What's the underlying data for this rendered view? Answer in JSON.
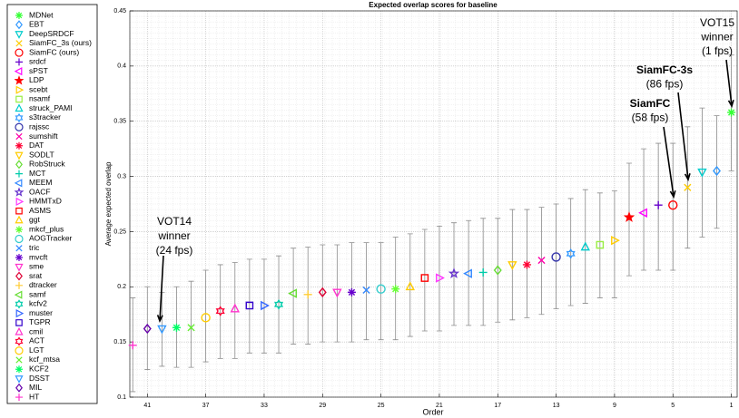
{
  "chart_data": {
    "type": "errorbar-scatter",
    "title": "Expected overlap scores for baseline",
    "xlabel": "Order",
    "ylabel": "Average expected overlap",
    "xlim": [
      0.6,
      42.2
    ],
    "xreverse": true,
    "xticks": [
      1,
      5,
      9,
      13,
      17,
      21,
      25,
      29,
      33,
      37,
      41
    ],
    "ylim": [
      0.1,
      0.45
    ],
    "yticks": [
      0.1,
      0.15,
      0.2,
      0.25,
      0.3,
      0.35,
      0.4,
      0.45
    ],
    "grid": true,
    "errorbar_color": "#8c8c8c",
    "series": [
      {
        "name": "MDNet",
        "color": "#33ff33",
        "marker": "asterisk",
        "x": [
          1
        ],
        "values": [
          0.358
        ],
        "lower": [
          0.305
        ],
        "upper": [
          0.41
        ]
      },
      {
        "name": "EBT",
        "color": "#3399ff",
        "marker": "diamond",
        "x": [
          2
        ],
        "values": [
          0.305
        ],
        "lower": [
          0.253
        ],
        "upper": [
          0.355
        ]
      },
      {
        "name": "DeepSRDCF",
        "color": "#00cccc",
        "marker": "tri-down",
        "x": [
          3
        ],
        "values": [
          0.304
        ],
        "lower": [
          0.245
        ],
        "upper": [
          0.362
        ]
      },
      {
        "name": "SiamFC_3s (ours)",
        "color": "#ffcc00",
        "marker": "x",
        "x": [
          4
        ],
        "values": [
          0.29
        ],
        "lower": [
          0.235
        ],
        "upper": [
          0.345
        ]
      },
      {
        "name": "SiamFC (ours)",
        "color": "#ff0000",
        "marker": "circle",
        "x": [
          5
        ],
        "values": [
          0.274
        ],
        "lower": [
          0.215
        ],
        "upper": [
          0.33
        ]
      },
      {
        "name": "srdcf",
        "color": "#6600cc",
        "marker": "plus",
        "x": [
          6
        ],
        "values": [
          0.274
        ],
        "lower": [
          0.215
        ],
        "upper": [
          0.33
        ]
      },
      {
        "name": "sPST",
        "color": "#ff00ff",
        "marker": "tri-left",
        "x": [
          7
        ],
        "values": [
          0.267
        ],
        "lower": [
          0.215
        ],
        "upper": [
          0.325
        ]
      },
      {
        "name": "LDP",
        "color": "#ff0000",
        "marker": "star",
        "filled": true,
        "x": [
          8
        ],
        "values": [
          0.263
        ],
        "lower": [
          0.21
        ],
        "upper": [
          0.312
        ]
      },
      {
        "name": "scebt",
        "color": "#ffcc00",
        "marker": "tri-right",
        "x": [
          9
        ],
        "values": [
          0.242
        ],
        "lower": [
          0.19
        ],
        "upper": [
          0.287
        ]
      },
      {
        "name": "nsamf",
        "color": "#99ee44",
        "marker": "square",
        "x": [
          10
        ],
        "values": [
          0.238
        ],
        "lower": [
          0.19
        ],
        "upper": [
          0.285
        ]
      },
      {
        "name": "struck_PAMI",
        "color": "#00cccc",
        "marker": "tri-up",
        "x": [
          11
        ],
        "values": [
          0.236
        ],
        "lower": [
          0.185
        ],
        "upper": [
          0.288
        ]
      },
      {
        "name": "s3tracker",
        "color": "#3399ff",
        "marker": "hexagram",
        "x": [
          12
        ],
        "values": [
          0.23
        ],
        "lower": [
          0.183
        ],
        "upper": [
          0.28
        ]
      },
      {
        "name": "rajssc",
        "color": "#3333aa",
        "marker": "circle",
        "x": [
          13
        ],
        "values": [
          0.227
        ],
        "lower": [
          0.18
        ],
        "upper": [
          0.275
        ]
      },
      {
        "name": "sumshift",
        "color": "#ff00aa",
        "marker": "x",
        "x": [
          14
        ],
        "values": [
          0.224
        ],
        "lower": [
          0.175
        ],
        "upper": [
          0.272
        ]
      },
      {
        "name": "DAT",
        "color": "#ff0033",
        "marker": "asterisk",
        "x": [
          15
        ],
        "values": [
          0.22
        ],
        "lower": [
          0.172
        ],
        "upper": [
          0.27
        ]
      },
      {
        "name": "SODLT",
        "color": "#ffcc00",
        "marker": "tri-down",
        "x": [
          16
        ],
        "values": [
          0.22
        ],
        "lower": [
          0.17
        ],
        "upper": [
          0.27
        ]
      },
      {
        "name": "RobStruck",
        "color": "#66dd33",
        "marker": "diamond",
        "x": [
          17
        ],
        "values": [
          0.215
        ],
        "lower": [
          0.168
        ],
        "upper": [
          0.262
        ]
      },
      {
        "name": "MCT",
        "color": "#00ccaa",
        "marker": "plus",
        "x": [
          18
        ],
        "values": [
          0.213
        ],
        "lower": [
          0.165
        ],
        "upper": [
          0.262
        ]
      },
      {
        "name": "MEEM",
        "color": "#3388ff",
        "marker": "tri-left",
        "x": [
          19
        ],
        "values": [
          0.212
        ],
        "lower": [
          0.165
        ],
        "upper": [
          0.26
        ]
      },
      {
        "name": "OACF",
        "color": "#6633cc",
        "marker": "star",
        "x": [
          20
        ],
        "values": [
          0.212
        ],
        "lower": [
          0.165
        ],
        "upper": [
          0.258
        ]
      },
      {
        "name": "HMMTxD",
        "color": "#ff33ff",
        "marker": "tri-right",
        "x": [
          21
        ],
        "values": [
          0.208
        ],
        "lower": [
          0.16
        ],
        "upper": [
          0.255
        ]
      },
      {
        "name": "ASMS",
        "color": "#ff0000",
        "marker": "square",
        "x": [
          22
        ],
        "values": [
          0.208
        ],
        "lower": [
          0.16
        ],
        "upper": [
          0.252
        ]
      },
      {
        "name": "ggt",
        "color": "#ffcc00",
        "marker": "tri-up",
        "x": [
          23
        ],
        "values": [
          0.2
        ],
        "lower": [
          0.155
        ],
        "upper": [
          0.248
        ]
      },
      {
        "name": "mkcf_plus",
        "color": "#66ff33",
        "marker": "asterisk",
        "x": [
          24
        ],
        "values": [
          0.198
        ],
        "lower": [
          0.152
        ],
        "upper": [
          0.245
        ]
      },
      {
        "name": "AOGTracker",
        "color": "#33cccc",
        "marker": "circle",
        "x": [
          25
        ],
        "values": [
          0.198
        ],
        "lower": [
          0.152
        ],
        "upper": [
          0.24
        ]
      },
      {
        "name": "tric",
        "color": "#3388ff",
        "marker": "x",
        "x": [
          26
        ],
        "values": [
          0.197
        ],
        "lower": [
          0.152
        ],
        "upper": [
          0.24
        ]
      },
      {
        "name": "mvcft",
        "color": "#6600cc",
        "marker": "asterisk",
        "x": [
          27
        ],
        "values": [
          0.195
        ],
        "lower": [
          0.15
        ],
        "upper": [
          0.24
        ]
      },
      {
        "name": "sme",
        "color": "#ff33cc",
        "marker": "tri-down",
        "x": [
          28
        ],
        "values": [
          0.195
        ],
        "lower": [
          0.15
        ],
        "upper": [
          0.238
        ]
      },
      {
        "name": "srat",
        "color": "#dd0033",
        "marker": "diamond",
        "x": [
          29
        ],
        "values": [
          0.195
        ],
        "lower": [
          0.15
        ],
        "upper": [
          0.238
        ]
      },
      {
        "name": "dtracker",
        "color": "#ffcc33",
        "marker": "plus",
        "x": [
          30
        ],
        "values": [
          0.193
        ],
        "lower": [
          0.148
        ],
        "upper": [
          0.236
        ]
      },
      {
        "name": "samf",
        "color": "#66dd33",
        "marker": "tri-left",
        "x": [
          31
        ],
        "values": [
          0.194
        ],
        "lower": [
          0.148
        ],
        "upper": [
          0.235
        ]
      },
      {
        "name": "kcfv2",
        "color": "#00ccaa",
        "marker": "hexagram",
        "x": [
          32
        ],
        "values": [
          0.184
        ],
        "lower": [
          0.14
        ],
        "upper": [
          0.228
        ]
      },
      {
        "name": "muster",
        "color": "#3366ff",
        "marker": "tri-right",
        "x": [
          33
        ],
        "values": [
          0.183
        ],
        "lower": [
          0.14
        ],
        "upper": [
          0.225
        ]
      },
      {
        "name": "TGPR",
        "color": "#3300cc",
        "marker": "square",
        "x": [
          34
        ],
        "values": [
          0.183
        ],
        "lower": [
          0.14
        ],
        "upper": [
          0.225
        ]
      },
      {
        "name": "cmil",
        "color": "#ff33cc",
        "marker": "tri-up",
        "x": [
          35
        ],
        "values": [
          0.18
        ],
        "lower": [
          0.135
        ],
        "upper": [
          0.222
        ]
      },
      {
        "name": "ACT",
        "color": "#ff0033",
        "marker": "hexagram",
        "x": [
          36
        ],
        "values": [
          0.178
        ],
        "lower": [
          0.135
        ],
        "upper": [
          0.22
        ]
      },
      {
        "name": "LGT",
        "color": "#ffcc00",
        "marker": "circle",
        "x": [
          37
        ],
        "values": [
          0.172
        ],
        "lower": [
          0.132
        ],
        "upper": [
          0.215
        ]
      },
      {
        "name": "kcf_mtsa",
        "color": "#66ee33",
        "marker": "x",
        "x": [
          38
        ],
        "values": [
          0.163
        ],
        "lower": [
          0.127
        ],
        "upper": [
          0.205
        ]
      },
      {
        "name": "KCF2",
        "color": "#00ff66",
        "marker": "asterisk",
        "x": [
          39
        ],
        "values": [
          0.163
        ],
        "lower": [
          0.127
        ],
        "upper": [
          0.2
        ]
      },
      {
        "name": "DSST",
        "color": "#3399ff",
        "marker": "tri-down",
        "x": [
          40
        ],
        "values": [
          0.162
        ],
        "lower": [
          0.128
        ],
        "upper": [
          0.195
        ]
      },
      {
        "name": "MIL",
        "color": "#6600aa",
        "marker": "diamond",
        "x": [
          41
        ],
        "values": [
          0.162
        ],
        "lower": [
          0.125
        ],
        "upper": [
          0.2
        ]
      },
      {
        "name": "HT",
        "color": "#ff33cc",
        "marker": "plus",
        "x": [
          42
        ],
        "values": [
          0.147
        ],
        "lower": [
          0.105
        ],
        "upper": [
          0.19
        ]
      }
    ],
    "annotations": [
      {
        "lines": [
          "VOT14",
          "winner",
          "(24 fps)"
        ]
      },
      {
        "lines": [
          "VOT15",
          "winner",
          "(1 fps)"
        ]
      },
      {
        "lines": [
          "SiamFC-3s",
          "(86 fps)"
        ]
      },
      {
        "lines": [
          "SiamFC",
          "(58 fps)"
        ]
      }
    ]
  }
}
